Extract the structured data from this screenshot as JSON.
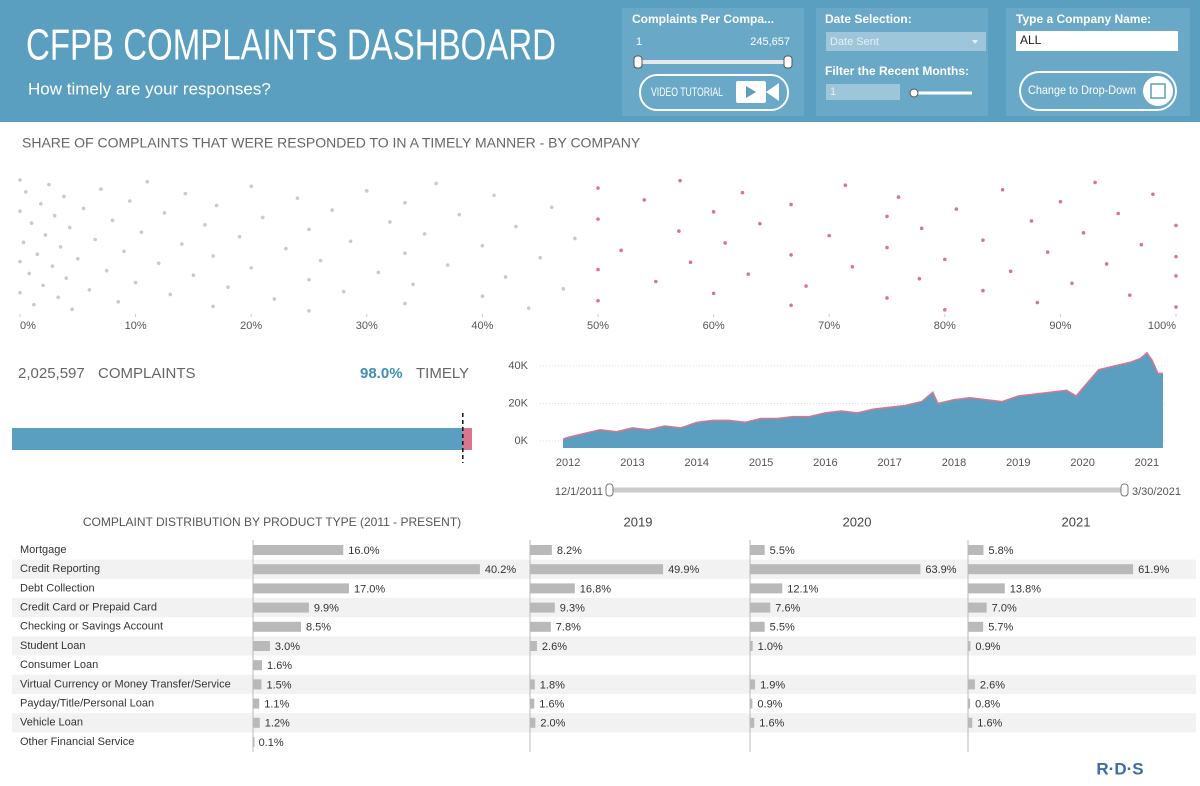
{
  "header": {
    "title": "CFPB COMPLAINTS DASHBOARD",
    "subtitle": "How timely are your responses?"
  },
  "controls": {
    "slider_label": "Complaints Per Compa...",
    "slider_min": "1",
    "slider_max": "245,657",
    "video_button": "VIDEO TUTORIAL",
    "date_label": "Date Selection:",
    "date_value": "Date Sent",
    "months_label": "Filter the Recent Months:",
    "months_value": "1",
    "company_label": "Type a Company Name:",
    "company_value": "ALL",
    "dropdown_button": "Change to Drop-Down"
  },
  "footer": {
    "logo": "R·D·S"
  },
  "chart_data": [
    {
      "type": "scatter",
      "title": "SHARE OF COMPLAINTS THAT WERE RESPONDED TO IN A TIMELY MANNER - BY COMPANY",
      "xlim": [
        0,
        100
      ],
      "xticks": [
        {
          "value": 0,
          "label": "0%"
        },
        {
          "value": 10,
          "label": "10%"
        },
        {
          "value": 20,
          "label": "20%"
        },
        {
          "value": 30,
          "label": "30%"
        },
        {
          "value": 40,
          "label": "40%"
        },
        {
          "value": 50,
          "label": "50%"
        },
        {
          "value": 60,
          "label": "60%"
        },
        {
          "value": 70,
          "label": "70%"
        },
        {
          "value": 80,
          "label": "80%"
        },
        {
          "value": 90,
          "label": "90%"
        },
        {
          "value": 100,
          "label": "100%"
        }
      ],
      "series": [
        {
          "color": "#c3ccd1",
          "x": [
            0,
            0,
            0,
            0,
            0.3,
            0.5,
            0.8,
            1,
            1.2,
            1.5,
            1.8,
            2,
            2.2,
            2.5,
            2.8,
            3,
            3.3,
            3.5,
            3.8,
            4,
            4.3,
            4.5,
            5,
            5.5,
            6,
            6.5,
            7,
            7.5,
            8,
            8.5,
            9,
            9.5,
            10,
            10.5,
            11,
            12,
            12.5,
            13,
            14,
            14.3,
            15,
            16,
            16.7,
            16.7,
            17,
            18,
            19,
            20,
            20,
            21,
            22,
            23,
            24,
            25,
            25,
            25,
            26,
            27,
            28,
            28.6,
            30,
            31,
            32,
            33.3,
            33.3,
            33.3,
            34,
            35,
            36,
            37,
            38,
            40,
            40,
            41,
            42,
            42.9,
            44,
            45,
            46,
            47,
            48
          ]
        },
        {
          "color": "#d9758f",
          "x": [
            50,
            50,
            50,
            50,
            52,
            54,
            55,
            57,
            57.1,
            58,
            60,
            60,
            61,
            62.5,
            63,
            64,
            66.7,
            66.7,
            66.7,
            68,
            70,
            71.4,
            72,
            75,
            75,
            75,
            76,
            77.8,
            78,
            80,
            80,
            81,
            83.3,
            83.3,
            85,
            85.7,
            87.5,
            88,
            88.9,
            90,
            91,
            92,
            93,
            94,
            95,
            96,
            97,
            98,
            100,
            100,
            100,
            100
          ]
        }
      ]
    },
    {
      "type": "stacked_bar",
      "total": 2025597,
      "total_label": "2,025,597",
      "total_text": "COMPLAINTS",
      "timely_text": "TIMELY",
      "values": [
        98.0,
        2.0
      ],
      "value_labels": [
        "98.0%",
        null
      ],
      "colors": [
        "#5a9fc0",
        "#d9758f"
      ],
      "xlim": [
        0,
        100
      ]
    },
    {
      "type": "area",
      "x": [
        2011.92,
        2012.0,
        2012.25,
        2012.5,
        2012.75,
        2013,
        2013.25,
        2013.5,
        2013.75,
        2014,
        2014.25,
        2014.5,
        2014.75,
        2015,
        2015.25,
        2015.5,
        2015.75,
        2016,
        2016.25,
        2016.5,
        2016.75,
        2017,
        2017.25,
        2017.5,
        2017.67,
        2017.75,
        2018,
        2018.25,
        2018.5,
        2018.75,
        2019,
        2019.25,
        2019.5,
        2019.75,
        2019.9,
        2020,
        2020.25,
        2020.5,
        2020.75,
        2020.9,
        2021,
        2021.08,
        2021.17,
        2021.25
      ],
      "values": [
        1000,
        2000,
        4000,
        6000,
        5000,
        7000,
        6000,
        8000,
        7000,
        10000,
        11000,
        11000,
        10000,
        12000,
        12000,
        13000,
        13000,
        15000,
        16000,
        15000,
        17000,
        18000,
        19000,
        21000,
        26000,
        20000,
        22000,
        23000,
        22000,
        21000,
        24000,
        25000,
        26000,
        27000,
        24000,
        28000,
        38000,
        40000,
        42000,
        44000,
        47000,
        43000,
        36000,
        36000
      ],
      "color": "#5a9fc0",
      "line_color": "#d9758f",
      "xlim": [
        2011.92,
        2021.25
      ],
      "xticks": [
        2012,
        2013,
        2014,
        2015,
        2016,
        2017,
        2018,
        2019,
        2020,
        2021
      ],
      "ylim": [
        -3700,
        49000
      ],
      "yticks": [
        {
          "value": 0,
          "label": "0K"
        },
        {
          "value": 20000,
          "label": "20K"
        },
        {
          "value": 40000,
          "label": "40K"
        }
      ],
      "grid": true,
      "range_labels": [
        "12/1/2011",
        "3/30/2021"
      ]
    },
    {
      "type": "bar",
      "title": "COMPLAINT DISTRIBUTION BY PRODUCT TYPE (2011 - PRESENT)",
      "categories": [
        "Mortgage",
        "Credit Reporting",
        "Debt Collection",
        "Credit Card or Prepaid Card",
        "Checking or Savings Account",
        "Student Loan",
        "Consumer Loan",
        "Virtual Currency or Money Transfer/Service",
        "Payday/Title/Personal Loan",
        "Vehicle Loan",
        "Other Financial Service"
      ],
      "values": [
        16.0,
        40.2,
        17.0,
        9.9,
        8.5,
        3.0,
        1.6,
        1.5,
        1.1,
        1.2,
        0.1
      ],
      "value_labels": [
        "16.0%",
        "40.2%",
        "17.0%",
        "9.9%",
        "8.5%",
        "3.0%",
        "1.6%",
        "1.5%",
        "1.1%",
        "1.2%",
        "0.1%"
      ],
      "color": "#b9b9b9",
      "xlim": [
        0,
        45
      ]
    },
    {
      "type": "bar",
      "title": "2019",
      "values": [
        8.2,
        49.9,
        16.8,
        9.3,
        7.8,
        2.6,
        null,
        1.8,
        1.6,
        2.0,
        null
      ],
      "value_labels": [
        "8.2%",
        "49.9%",
        "16.8%",
        "9.3%",
        "7.8%",
        "2.6%",
        null,
        "1.8%",
        "1.6%",
        "2.0%",
        null
      ],
      "color": "#b9b9b9",
      "xlim": [
        0,
        75
      ]
    },
    {
      "type": "bar",
      "title": "2020",
      "values": [
        5.5,
        63.9,
        12.1,
        7.6,
        5.5,
        1.0,
        null,
        1.9,
        0.9,
        1.6,
        null
      ],
      "value_labels": [
        "5.5%",
        "63.9%",
        "12.1%",
        "7.6%",
        "5.5%",
        "1.0%",
        null,
        "1.9%",
        "0.9%",
        "1.6%",
        null
      ],
      "color": "#b9b9b9",
      "xlim": [
        0,
        75
      ]
    },
    {
      "type": "bar",
      "title": "2021",
      "values": [
        5.8,
        61.9,
        13.8,
        7.0,
        5.7,
        0.9,
        null,
        2.6,
        0.8,
        1.6,
        null
      ],
      "value_labels": [
        "5.8%",
        "61.9%",
        "13.8%",
        "7.0%",
        "5.7%",
        "0.9%",
        null,
        "2.6%",
        "0.8%",
        "1.6%",
        null
      ],
      "color": "#b9b9b9",
      "xlim": [
        0,
        75
      ]
    }
  ]
}
